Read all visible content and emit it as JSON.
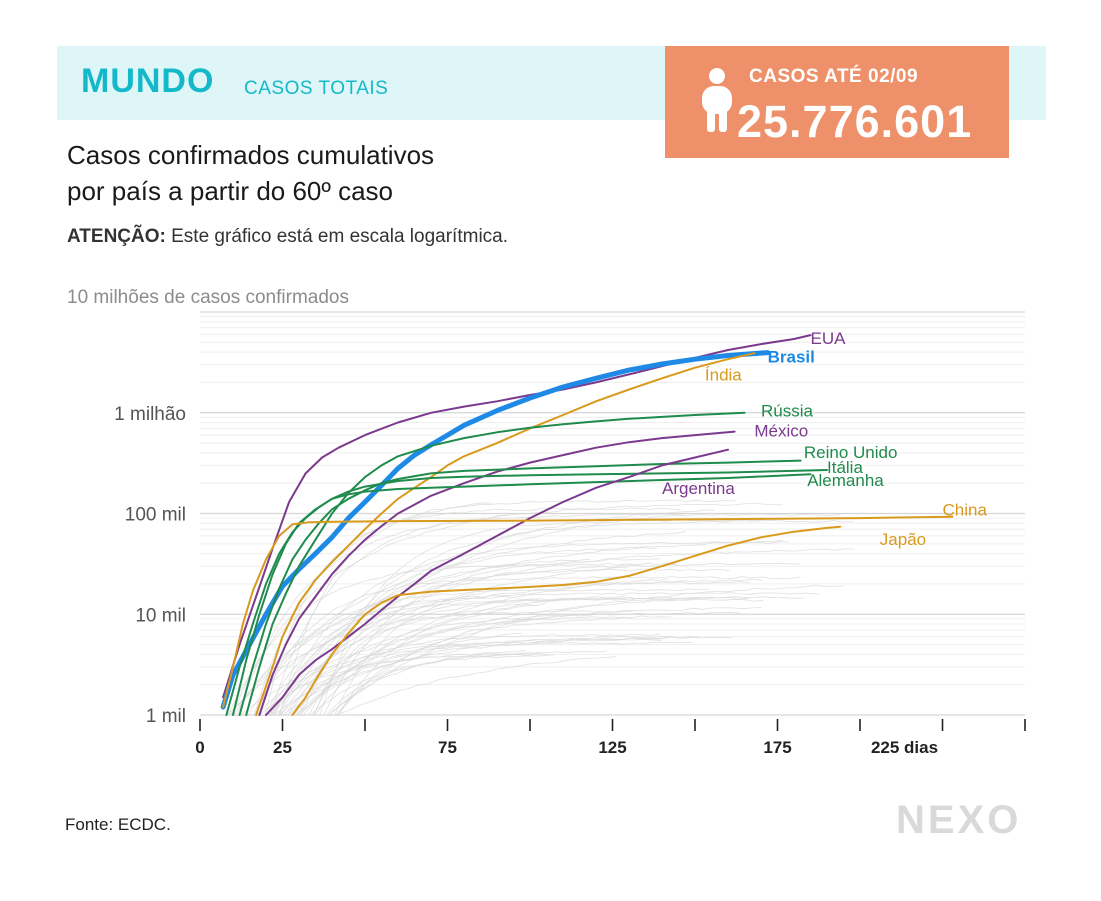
{
  "header": {
    "title": "MUNDO",
    "subtitle": "CASOS TOTAIS"
  },
  "summary": {
    "label": "CASOS ATÉ 02/09",
    "value": "25.776.601",
    "icon": "person-icon"
  },
  "headline": {
    "line1": "Casos confirmados cumulativos",
    "line2": "por país a partir do 60º caso"
  },
  "warning": {
    "prefix": "ATENÇÃO:",
    "text": " Este gráfico está em escala logarítmica."
  },
  "source": "Fonte: ECDC.",
  "logo": "NEXO",
  "colors": {
    "accent": "#13b9c9",
    "box": "#ee9069",
    "purple": "#7b3a8d",
    "green": "#1f8b4c",
    "orange": "#d99a1c",
    "blue": "#1f8ae6",
    "grey": "#cfcfcf"
  },
  "chart_data": {
    "type": "line",
    "scale": "log",
    "ylabel": "10 milhões de casos confirmados",
    "ylim": [
      1000,
      10000000
    ],
    "yticks": [
      {
        "value": 1000,
        "label": "1 mil"
      },
      {
        "value": 10000,
        "label": "10 mil"
      },
      {
        "value": 100000,
        "label": "100 mil"
      },
      {
        "value": 1000000,
        "label": "1 milhão"
      }
    ],
    "xlim": [
      0,
      250
    ],
    "xticks": [
      0,
      25,
      50,
      75,
      100,
      125,
      150,
      175,
      200,
      225,
      250
    ],
    "xtick_labels": [
      {
        "value": 0,
        "label": "0"
      },
      {
        "value": 25,
        "label": "25"
      },
      {
        "value": 75,
        "label": "75"
      },
      {
        "value": 125,
        "label": "125"
      },
      {
        "value": 175,
        "label": "175"
      },
      {
        "value": 225,
        "label": "225 dias"
      }
    ],
    "series": [
      {
        "name": "EUA",
        "color": "purple",
        "width": 2,
        "label_at": [
          185,
          5500000
        ],
        "points": [
          [
            7,
            1500
          ],
          [
            12,
            5000
          ],
          [
            17,
            15000
          ],
          [
            22,
            45000
          ],
          [
            27,
            130000
          ],
          [
            32,
            250000
          ],
          [
            37,
            360000
          ],
          [
            42,
            450000
          ],
          [
            50,
            600000
          ],
          [
            60,
            800000
          ],
          [
            70,
            1000000
          ],
          [
            80,
            1150000
          ],
          [
            90,
            1300000
          ],
          [
            100,
            1500000
          ],
          [
            110,
            1700000
          ],
          [
            120,
            2000000
          ],
          [
            130,
            2400000
          ],
          [
            140,
            2900000
          ],
          [
            150,
            3500000
          ],
          [
            160,
            4200000
          ],
          [
            170,
            4800000
          ],
          [
            180,
            5400000
          ],
          [
            185,
            5900000
          ]
        ]
      },
      {
        "name": "Brasil",
        "color": "blue",
        "width": 5,
        "bold": true,
        "label_at": [
          172,
          3600000
        ],
        "points": [
          [
            7,
            1200
          ],
          [
            10,
            2500
          ],
          [
            15,
            5000
          ],
          [
            20,
            10000
          ],
          [
            25,
            19000
          ],
          [
            30,
            28000
          ],
          [
            35,
            40000
          ],
          [
            40,
            58000
          ],
          [
            45,
            90000
          ],
          [
            50,
            130000
          ],
          [
            55,
            190000
          ],
          [
            60,
            280000
          ],
          [
            65,
            380000
          ],
          [
            70,
            480000
          ],
          [
            75,
            600000
          ],
          [
            80,
            750000
          ],
          [
            90,
            1050000
          ],
          [
            100,
            1400000
          ],
          [
            110,
            1800000
          ],
          [
            120,
            2200000
          ],
          [
            130,
            2650000
          ],
          [
            140,
            3050000
          ],
          [
            150,
            3400000
          ],
          [
            160,
            3700000
          ],
          [
            172,
            3950000
          ]
        ]
      },
      {
        "name": "Índia",
        "color": "orange",
        "width": 2,
        "label_at": [
          153,
          2400000
        ],
        "points": [
          [
            17,
            1000
          ],
          [
            22,
            3000
          ],
          [
            25,
            6000
          ],
          [
            30,
            13000
          ],
          [
            35,
            22000
          ],
          [
            40,
            33000
          ],
          [
            45,
            48000
          ],
          [
            50,
            70000
          ],
          [
            55,
            100000
          ],
          [
            60,
            140000
          ],
          [
            65,
            180000
          ],
          [
            70,
            230000
          ],
          [
            75,
            300000
          ],
          [
            80,
            370000
          ],
          [
            90,
            500000
          ],
          [
            100,
            700000
          ],
          [
            110,
            950000
          ],
          [
            120,
            1300000
          ],
          [
            130,
            1700000
          ],
          [
            140,
            2200000
          ],
          [
            150,
            2800000
          ],
          [
            160,
            3400000
          ],
          [
            168,
            3900000
          ]
        ]
      },
      {
        "name": "Rússia",
        "color": "green",
        "width": 2,
        "label_at": [
          170,
          1050000
        ],
        "points": [
          [
            14,
            1000
          ],
          [
            18,
            3000
          ],
          [
            22,
            8000
          ],
          [
            26,
            16000
          ],
          [
            30,
            30000
          ],
          [
            35,
            55000
          ],
          [
            40,
            100000
          ],
          [
            45,
            160000
          ],
          [
            50,
            230000
          ],
          [
            55,
            300000
          ],
          [
            60,
            370000
          ],
          [
            70,
            470000
          ],
          [
            80,
            560000
          ],
          [
            90,
            640000
          ],
          [
            100,
            710000
          ],
          [
            110,
            770000
          ],
          [
            120,
            820000
          ],
          [
            130,
            870000
          ],
          [
            140,
            910000
          ],
          [
            150,
            950000
          ],
          [
            165,
            1000000
          ]
        ]
      },
      {
        "name": "México",
        "color": "purple",
        "width": 2,
        "label_at": [
          168,
          670000
        ],
        "points": [
          [
            18,
            1000
          ],
          [
            22,
            2500
          ],
          [
            26,
            5000
          ],
          [
            30,
            9000
          ],
          [
            35,
            15000
          ],
          [
            40,
            25000
          ],
          [
            45,
            38000
          ],
          [
            50,
            55000
          ],
          [
            55,
            75000
          ],
          [
            60,
            100000
          ],
          [
            70,
            150000
          ],
          [
            80,
            200000
          ],
          [
            90,
            260000
          ],
          [
            100,
            320000
          ],
          [
            110,
            380000
          ],
          [
            120,
            450000
          ],
          [
            130,
            510000
          ],
          [
            140,
            560000
          ],
          [
            150,
            600000
          ],
          [
            162,
            650000
          ]
        ]
      },
      {
        "name": "Reino Unido",
        "color": "green",
        "width": 2,
        "label_at": [
          183,
          410000
        ],
        "points": [
          [
            12,
            1000
          ],
          [
            16,
            3000
          ],
          [
            20,
            8000
          ],
          [
            24,
            18000
          ],
          [
            28,
            35000
          ],
          [
            32,
            55000
          ],
          [
            36,
            80000
          ],
          [
            40,
            110000
          ],
          [
            45,
            140000
          ],
          [
            50,
            170000
          ],
          [
            55,
            200000
          ],
          [
            60,
            220000
          ],
          [
            70,
            250000
          ],
          [
            80,
            265000
          ],
          [
            100,
            280000
          ],
          [
            120,
            295000
          ],
          [
            140,
            310000
          ],
          [
            160,
            320000
          ],
          [
            182,
            335000
          ]
        ]
      },
      {
        "name": "Itália",
        "color": "green",
        "width": 2,
        "label_at": [
          190,
          290000
        ],
        "points": [
          [
            8,
            1000
          ],
          [
            12,
            3000
          ],
          [
            16,
            8000
          ],
          [
            20,
            20000
          ],
          [
            24,
            40000
          ],
          [
            28,
            65000
          ],
          [
            32,
            90000
          ],
          [
            36,
            115000
          ],
          [
            40,
            140000
          ],
          [
            45,
            165000
          ],
          [
            50,
            185000
          ],
          [
            60,
            210000
          ],
          [
            70,
            225000
          ],
          [
            80,
            232000
          ],
          [
            100,
            240000
          ],
          [
            120,
            245000
          ],
          [
            140,
            250000
          ],
          [
            160,
            255000
          ],
          [
            190,
            270000
          ]
        ]
      },
      {
        "name": "Alemanha",
        "color": "green",
        "width": 2,
        "label_at": [
          184,
          215000
        ],
        "points": [
          [
            10,
            1000
          ],
          [
            14,
            3500
          ],
          [
            18,
            10000
          ],
          [
            22,
            25000
          ],
          [
            26,
            50000
          ],
          [
            30,
            80000
          ],
          [
            35,
            110000
          ],
          [
            40,
            140000
          ],
          [
            45,
            155000
          ],
          [
            50,
            165000
          ],
          [
            60,
            175000
          ],
          [
            70,
            180000
          ],
          [
            80,
            185000
          ],
          [
            100,
            195000
          ],
          [
            120,
            205000
          ],
          [
            140,
            215000
          ],
          [
            160,
            225000
          ],
          [
            185,
            245000
          ]
        ]
      },
      {
        "name": "Argentina",
        "color": "purple",
        "width": 2,
        "label_at": [
          140,
          180000
        ],
        "points": [
          [
            20,
            1000
          ],
          [
            25,
            1500
          ],
          [
            30,
            2500
          ],
          [
            35,
            3500
          ],
          [
            40,
            4500
          ],
          [
            45,
            6000
          ],
          [
            50,
            8000
          ],
          [
            55,
            11000
          ],
          [
            60,
            15000
          ],
          [
            65,
            20000
          ],
          [
            70,
            27000
          ],
          [
            80,
            40000
          ],
          [
            90,
            60000
          ],
          [
            100,
            90000
          ],
          [
            110,
            130000
          ],
          [
            120,
            180000
          ],
          [
            130,
            230000
          ],
          [
            140,
            300000
          ],
          [
            150,
            360000
          ],
          [
            160,
            430000
          ]
        ]
      },
      {
        "name": "China",
        "color": "orange",
        "width": 2,
        "label_at": [
          225,
          110000
        ],
        "points": [
          [
            7,
            1200
          ],
          [
            10,
            3000
          ],
          [
            13,
            8000
          ],
          [
            16,
            17000
          ],
          [
            20,
            35000
          ],
          [
            24,
            60000
          ],
          [
            28,
            78000
          ],
          [
            33,
            82000
          ],
          [
            40,
            83000
          ],
          [
            60,
            84000
          ],
          [
            80,
            84500
          ],
          [
            100,
            85000
          ],
          [
            120,
            86000
          ],
          [
            140,
            87000
          ],
          [
            160,
            88000
          ],
          [
            180,
            89000
          ],
          [
            200,
            90000
          ],
          [
            220,
            92000
          ],
          [
            228,
            93000
          ]
        ]
      },
      {
        "name": "Japão",
        "color": "orange",
        "width": 2,
        "label_at": [
          206,
          56000
        ],
        "points": [
          [
            28,
            1000
          ],
          [
            32,
            1500
          ],
          [
            36,
            2500
          ],
          [
            40,
            4000
          ],
          [
            45,
            6500
          ],
          [
            50,
            10000
          ],
          [
            55,
            13000
          ],
          [
            60,
            15500
          ],
          [
            70,
            16800
          ],
          [
            80,
            17400
          ],
          [
            90,
            18000
          ],
          [
            100,
            18700
          ],
          [
            110,
            19500
          ],
          [
            120,
            21000
          ],
          [
            130,
            24000
          ],
          [
            140,
            30000
          ],
          [
            150,
            38000
          ],
          [
            160,
            48000
          ],
          [
            170,
            58000
          ],
          [
            180,
            66000
          ],
          [
            190,
            72000
          ],
          [
            194,
            74000
          ]
        ]
      }
    ]
  }
}
